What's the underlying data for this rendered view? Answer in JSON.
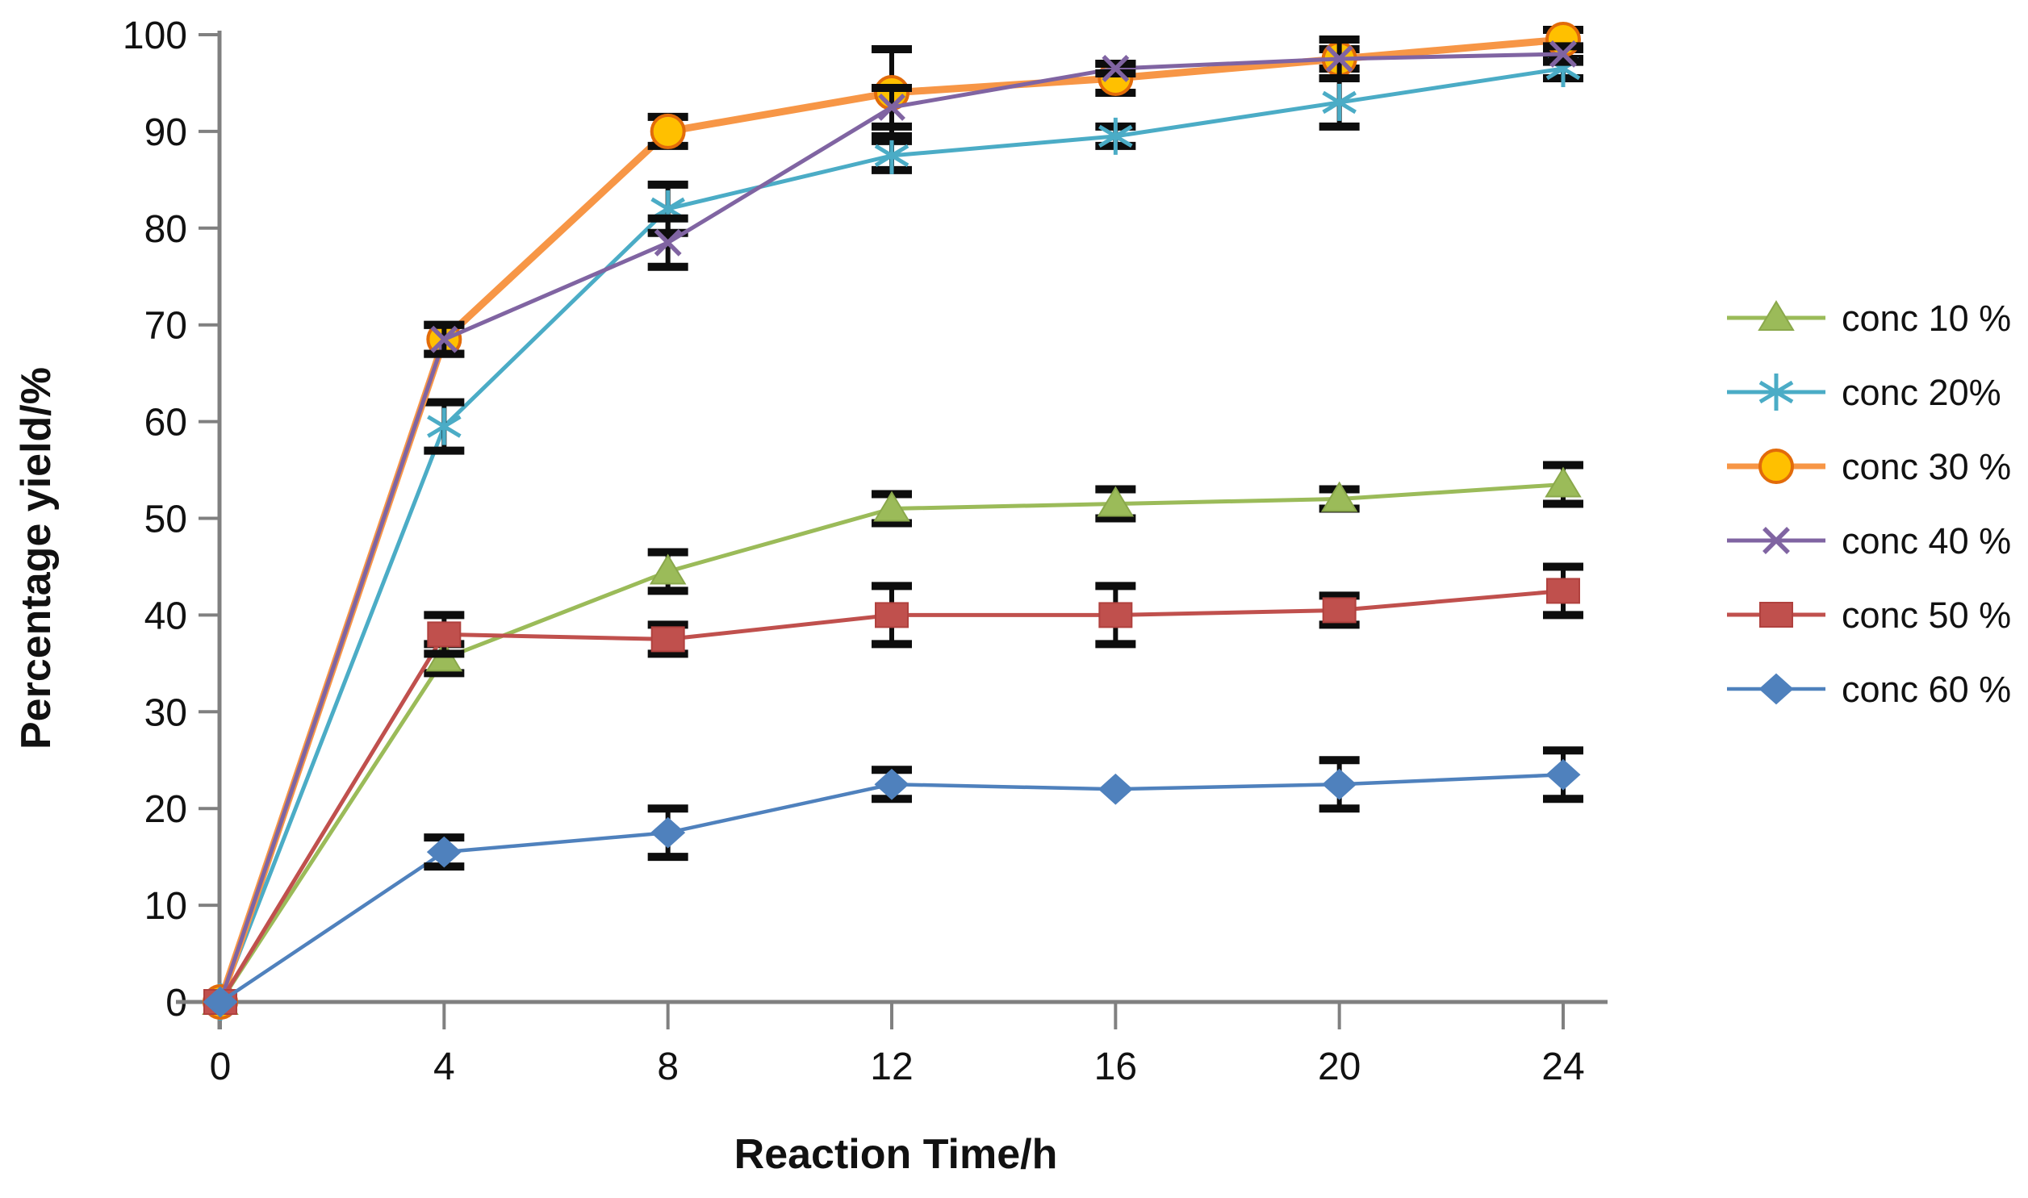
{
  "chart_data": {
    "type": "line",
    "title": "",
    "xlabel": "Reaction Time/h",
    "ylabel": "Percentage yield/%",
    "x": [
      0,
      4,
      8,
      12,
      16,
      20,
      24
    ],
    "x_tick_labels": [
      "0",
      "4",
      "8",
      "12",
      "16",
      "20",
      "24"
    ],
    "y_ticks": [
      0,
      10,
      20,
      30,
      40,
      50,
      60,
      70,
      80,
      90,
      100
    ],
    "xlim": [
      0,
      24
    ],
    "ylim": [
      0,
      100
    ],
    "grid": false,
    "legend_position": "right-outside",
    "axis_color": "#808080",
    "error_bar_color": "#0d0d0d",
    "text_color": "#111111",
    "series": [
      {
        "name": "conc 10 %",
        "color": "#9BBB59",
        "marker": "triangle",
        "marker_fill": "#9BBB59",
        "marker_stroke": "#8AA84B",
        "line_width": 5,
        "values": [
          0,
          35.5,
          44.5,
          51,
          51.5,
          52,
          53.5
        ],
        "errors": [
          null,
          1.5,
          2,
          1.5,
          1.5,
          1,
          2
        ]
      },
      {
        "name": "conc 20%",
        "color": "#4BACC6",
        "marker": "asterisk",
        "marker_fill": "#4BACC6",
        "marker_stroke": "#4BACC6",
        "line_width": 5,
        "values": [
          0,
          59.5,
          82,
          87.5,
          89.5,
          93,
          96.5
        ],
        "errors": [
          null,
          2.5,
          2.5,
          1.5,
          1,
          2.5,
          1
        ]
      },
      {
        "name": "conc 30 %",
        "color": "#F79646",
        "marker": "circle",
        "marker_fill": "#FFC000",
        "marker_stroke": "#E26B0A",
        "line_width": 9,
        "values": [
          0,
          68.5,
          90,
          94,
          95.5,
          97.5,
          99.5
        ],
        "errors": [
          null,
          1.5,
          1.5,
          4.5,
          1.5,
          1,
          1
        ]
      },
      {
        "name": "conc 40 %",
        "color": "#8064A2",
        "marker": "xcross",
        "marker_fill": "#8064A2",
        "marker_stroke": "#8064A2",
        "line_width": 5,
        "values": [
          0,
          68.5,
          78.5,
          92.5,
          96.5,
          97.5,
          98
        ],
        "errors": [
          null,
          1.5,
          2.5,
          2,
          0.5,
          2,
          0.8
        ]
      },
      {
        "name": "conc 50 %",
        "color": "#C0504D",
        "marker": "square",
        "marker_fill": "#C0504D",
        "marker_stroke": "#B0413E",
        "line_width": 5,
        "values": [
          0,
          38,
          37.5,
          40,
          40,
          40.5,
          42.5
        ],
        "errors": [
          null,
          2,
          1.5,
          3,
          3,
          1.5,
          2.5
        ]
      },
      {
        "name": "conc 60 %",
        "color": "#4F81BD",
        "marker": "diamond",
        "marker_fill": "#4F81BD",
        "marker_stroke": "#4F81BD",
        "line_width": 4.5,
        "values": [
          0,
          15.5,
          17.5,
          22.5,
          22,
          22.5,
          23.5
        ],
        "errors": [
          null,
          1.5,
          2.5,
          1.5,
          null,
          2.5,
          2.5
        ]
      }
    ]
  }
}
